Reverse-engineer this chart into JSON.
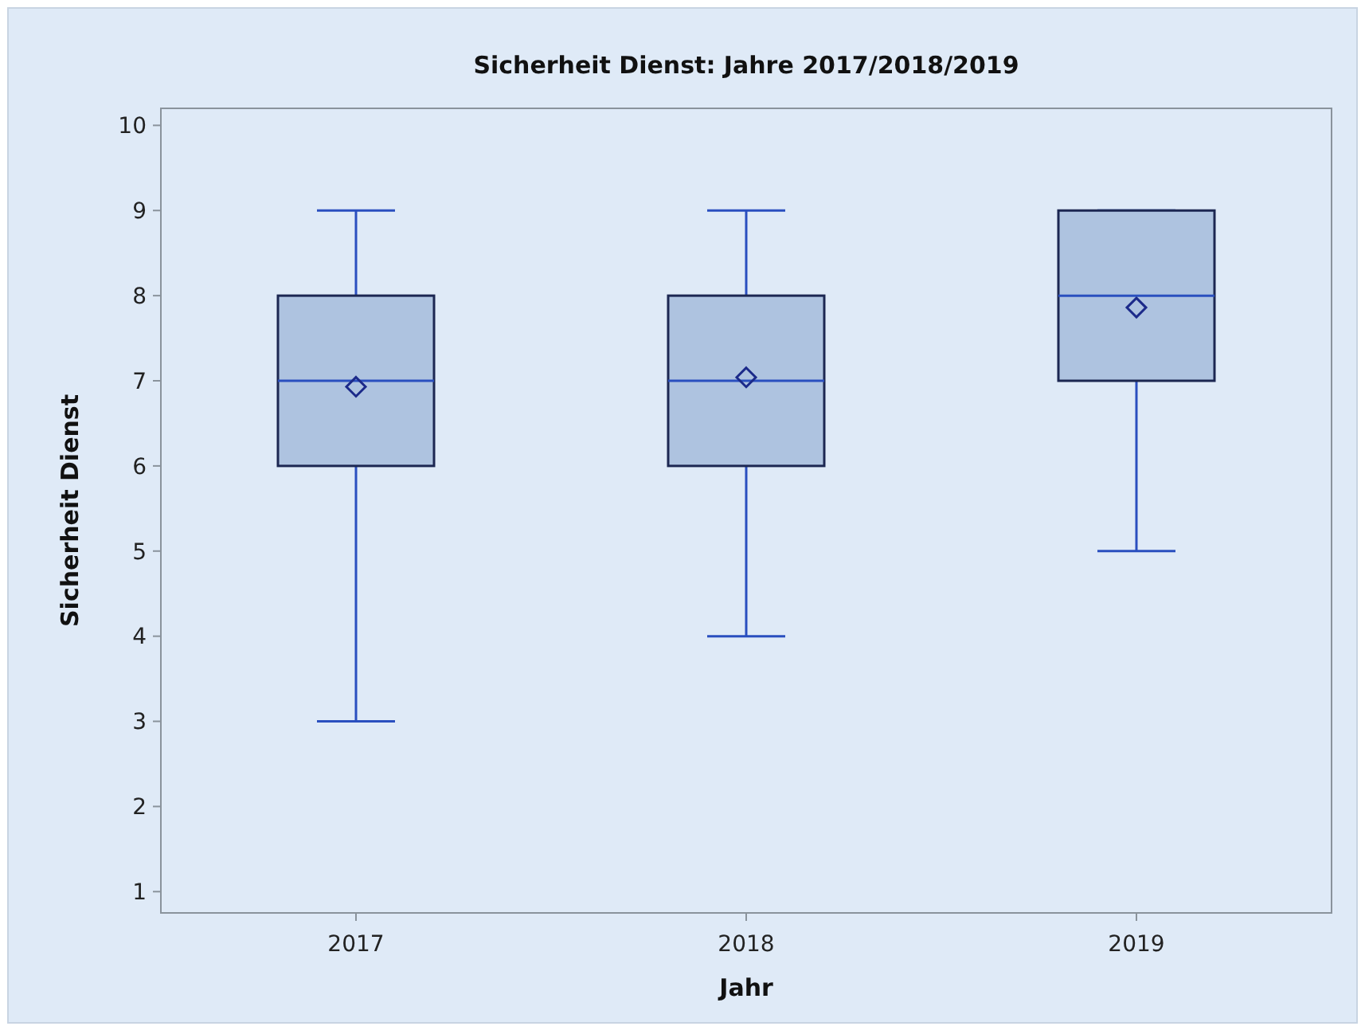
{
  "chart_data": {
    "type": "box",
    "title": "Sicherheit Dienst: Jahre 2017/2018/2019",
    "xlabel": "Jahr",
    "ylabel": "Sicherheit Dienst",
    "categories": [
      "2017",
      "2018",
      "2019"
    ],
    "color": "#aec3e0",
    "boxes": [
      {
        "low": 3,
        "q1": 6,
        "median": 7,
        "q3": 8,
        "high": 9,
        "mean": 6.93
      },
      {
        "low": 4,
        "q1": 6,
        "median": 7,
        "q3": 8,
        "high": 9,
        "mean": 7.04
      },
      {
        "low": 5,
        "q1": 7,
        "median": 8,
        "q3": 9,
        "high": 9,
        "mean": 7.86
      }
    ],
    "ylim": [
      0.75,
      10.2
    ],
    "yticks": [
      1,
      2,
      3,
      4,
      5,
      6,
      7,
      8,
      9,
      10
    ],
    "grid": false
  }
}
